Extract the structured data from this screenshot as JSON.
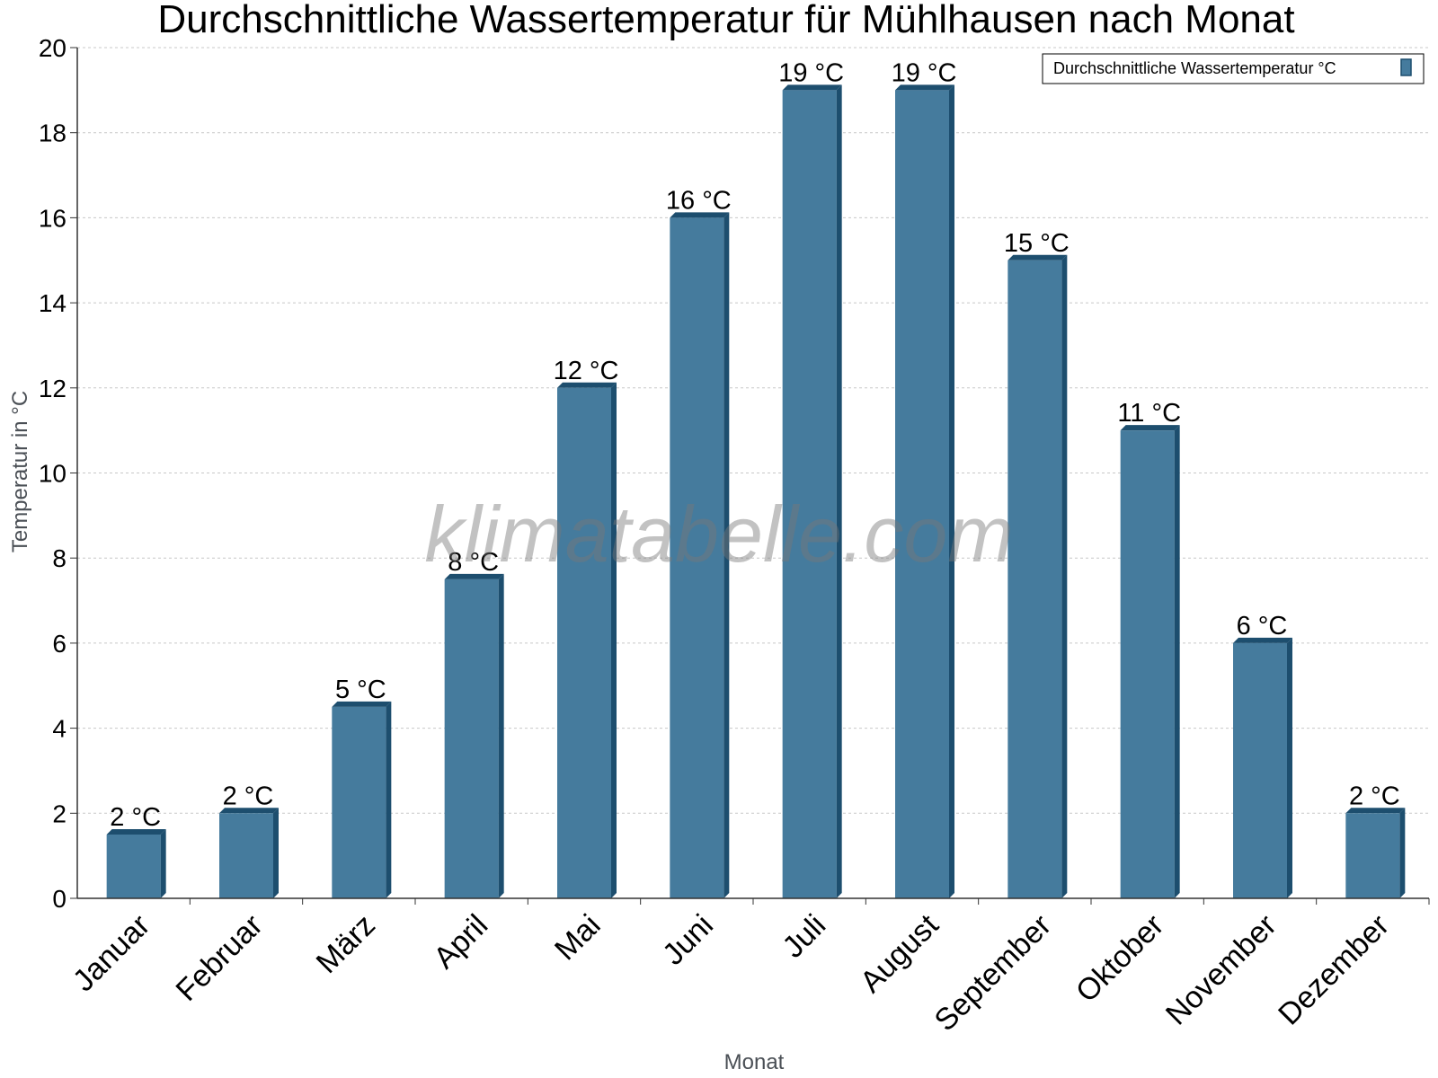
{
  "chart_data": {
    "type": "bar",
    "title": "Durchschnittliche Wassertemperatur für Mühlhausen nach Monat",
    "xlabel": "Monat",
    "ylabel": "Temperatur in °C",
    "categories": [
      "Januar",
      "Februar",
      "März",
      "April",
      "Mai",
      "Juni",
      "Juli",
      "August",
      "September",
      "Oktober",
      "November",
      "Dezember"
    ],
    "series": [
      {
        "name": "Durchschnittliche Wassertemperatur °C",
        "values": [
          1.5,
          2,
          4.5,
          7.5,
          12,
          16,
          19,
          19,
          15,
          11,
          6,
          2
        ],
        "labels": [
          "2 °C",
          "2 °C",
          "5 °C",
          "8 °C",
          "12 °C",
          "16 °C",
          "19 °C",
          "19 °C",
          "15 °C",
          "11 °C",
          "6 °C",
          "2 °C"
        ]
      }
    ],
    "ylim": [
      0,
      20
    ],
    "yticks": [
      "0",
      "2",
      "4",
      "6",
      "8",
      "10",
      "12",
      "14",
      "16",
      "18",
      "20"
    ],
    "grid": true,
    "legend": "top-right",
    "colors": {
      "bar_front": "#457b9d",
      "bar_side": "#1d4e6e",
      "bar_top": "#1d4e6e",
      "grid": "#c8c8c8",
      "axis": "#333333"
    }
  },
  "watermark": "klimatabelle.com"
}
